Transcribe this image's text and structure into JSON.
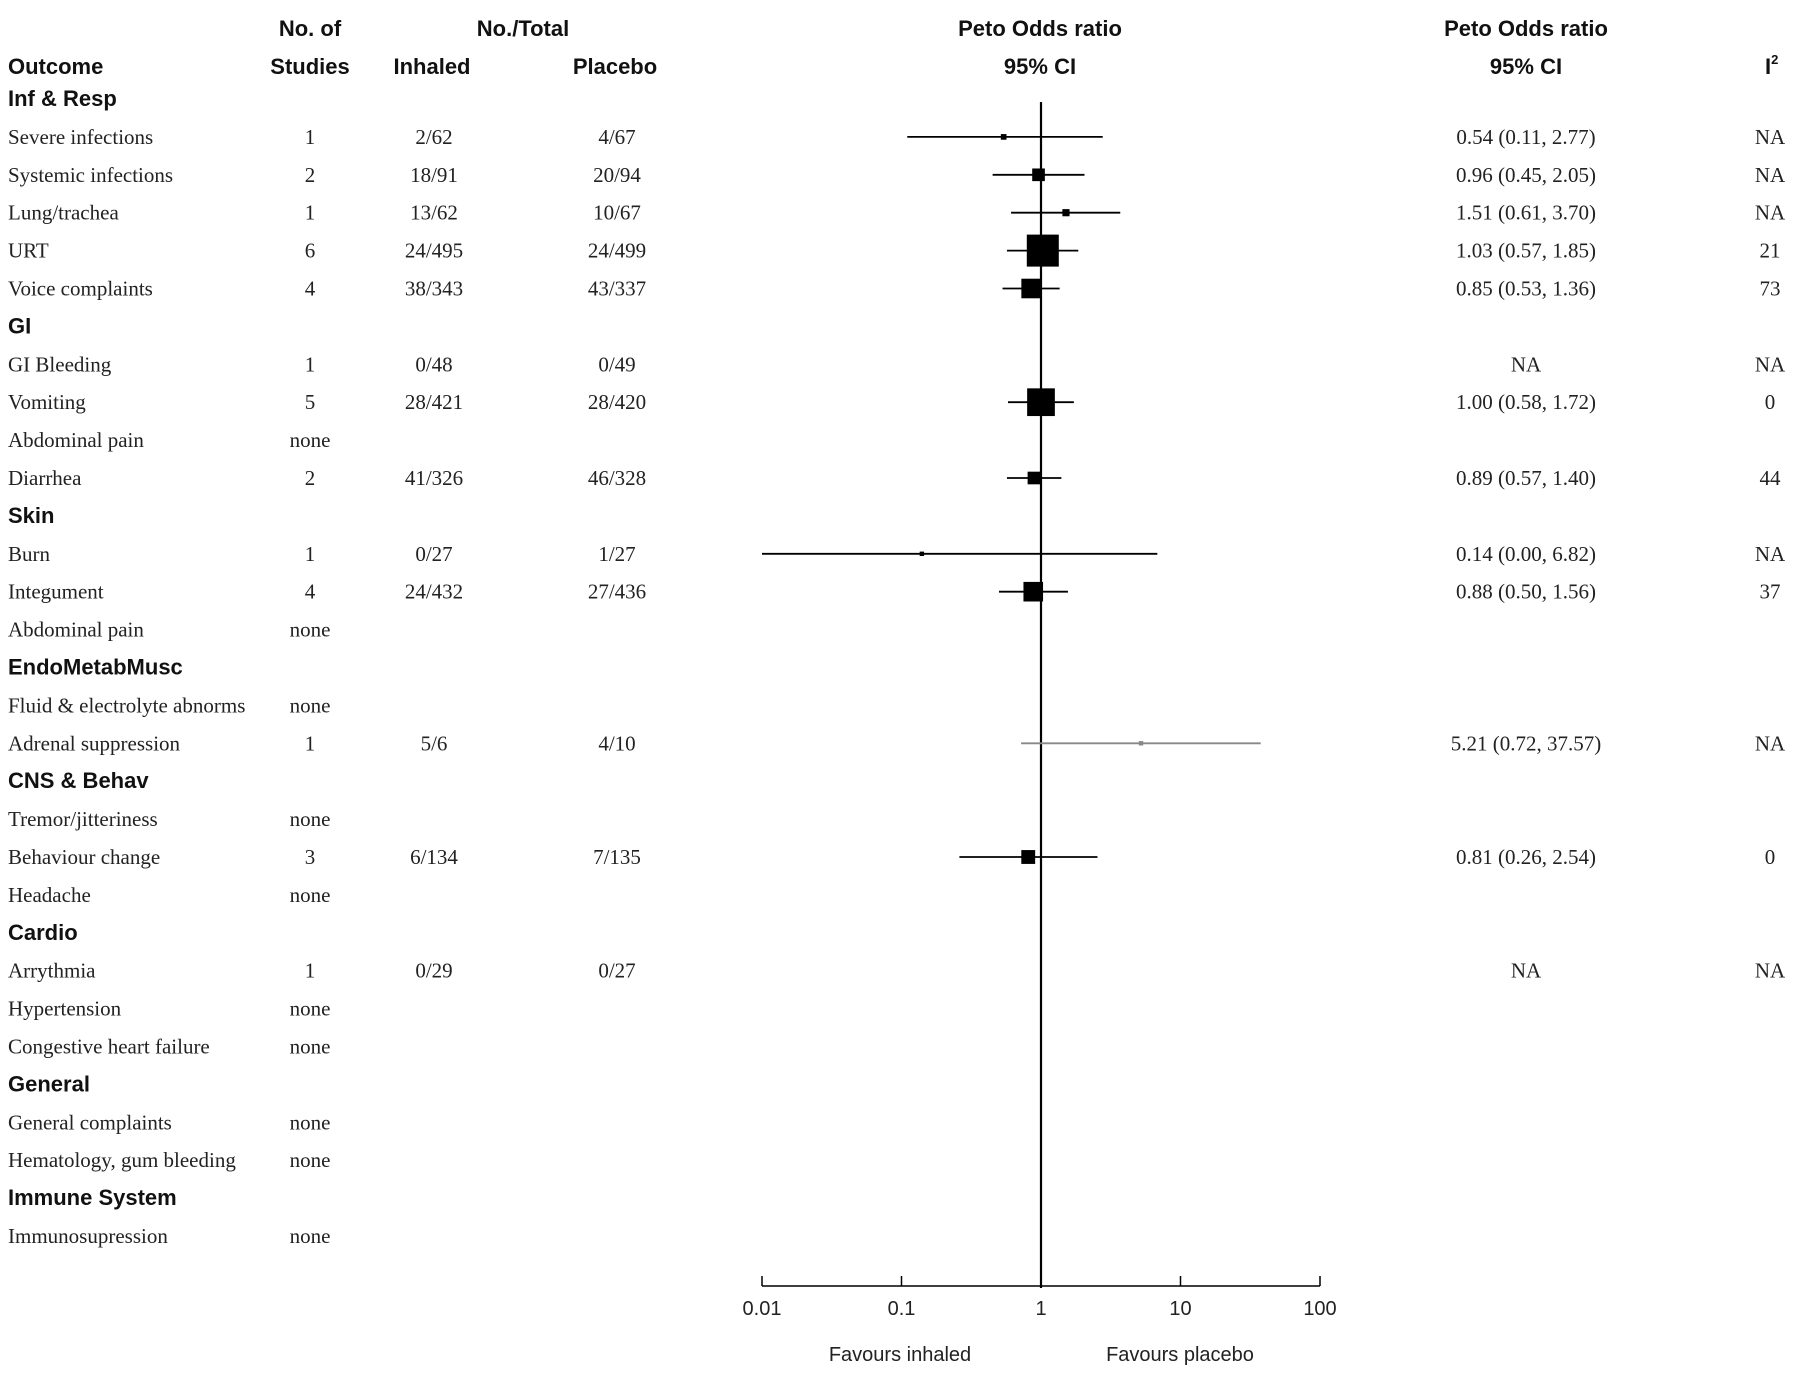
{
  "chart_data": {
    "type": "forest",
    "x_scale": "log",
    "xlim": [
      0.01,
      100
    ],
    "ref_line": 1,
    "headers": {
      "no_of": "No. of",
      "studies": "Studies",
      "no_total": "No./Total",
      "outcome": "Outcome",
      "inhaled": "Inhaled",
      "placebo": "Placebo",
      "peto_center": "Peto Odds ratio",
      "ci_center": "95% CI",
      "peto_right": "Peto Odds ratio",
      "ci_right": "95% CI",
      "i2": "I",
      "i2_sup": "2"
    },
    "x_ticks": [
      "0.01",
      "0.1",
      "1",
      "10",
      "100"
    ],
    "x_tick_values": [
      0.01,
      0.1,
      1,
      10,
      100
    ],
    "favours_left": "Favours inhaled",
    "favours_right": "Favours placebo",
    "rows": [
      {
        "section": "Inf & Resp"
      },
      {
        "outcome": "Severe infections",
        "studies": "1",
        "inhaled": "2/62",
        "placebo": "4/67",
        "or": 0.54,
        "lo": 0.11,
        "hi": 2.77,
        "ci_text": "0.54 (0.11, 2.77)",
        "i2": "NA",
        "weight": 0.5,
        "color": "#000000"
      },
      {
        "outcome": "Systemic infections",
        "studies": "2",
        "inhaled": "18/91",
        "placebo": "20/94",
        "or": 0.96,
        "lo": 0.45,
        "hi": 2.05,
        "ci_text": "0.96 (0.45, 2.05)",
        "i2": "NA",
        "weight": 2.5,
        "color": "#000000"
      },
      {
        "outcome": "Lung/trachea",
        "studies": "1",
        "inhaled": "13/62",
        "placebo": "10/67",
        "or": 1.51,
        "lo": 0.61,
        "hi": 3.7,
        "ci_text": "1.51 (0.61, 3.70)",
        "i2": "NA",
        "weight": 0.8,
        "color": "#000000"
      },
      {
        "outcome": "URT",
        "studies": "6",
        "inhaled": "24/495",
        "placebo": "24/499",
        "or": 1.03,
        "lo": 0.57,
        "hi": 1.85,
        "ci_text": "1.03 (0.57, 1.85)",
        "i2": "21",
        "weight": 16,
        "color": "#000000"
      },
      {
        "outcome": "Voice complaints",
        "studies": "4",
        "inhaled": "38/343",
        "placebo": "43/337",
        "or": 0.85,
        "lo": 0.53,
        "hi": 1.36,
        "ci_text": "0.85 (0.53, 1.36)",
        "i2": "73",
        "weight": 6,
        "color": "#000000"
      },
      {
        "section": "GI"
      },
      {
        "outcome": "GI Bleeding",
        "studies": "1",
        "inhaled": "0/48",
        "placebo": "0/49",
        "or": null,
        "lo": null,
        "hi": null,
        "ci_text": "NA",
        "i2": "NA"
      },
      {
        "outcome": "Vomiting",
        "studies": "5",
        "inhaled": "28/421",
        "placebo": "28/420",
        "or": 1.0,
        "lo": 0.58,
        "hi": 1.72,
        "ci_text": "1.00 (0.58, 1.72)",
        "i2": "0",
        "weight": 12,
        "color": "#000000"
      },
      {
        "outcome": "Abdominal pain",
        "studies": "none"
      },
      {
        "outcome": "Diarrhea",
        "studies": "2",
        "inhaled": "41/326",
        "placebo": "46/328",
        "or": 0.89,
        "lo": 0.57,
        "hi": 1.4,
        "ci_text": "0.89 (0.57, 1.40)",
        "i2": "44",
        "weight": 2.5,
        "color": "#000000"
      },
      {
        "section": "Skin"
      },
      {
        "outcome": "Burn",
        "studies": "1",
        "inhaled": "0/27",
        "placebo": "1/27",
        "or": 0.14,
        "lo": 0.0,
        "hi": 6.82,
        "ci_text": "0.14 (0.00, 6.82)",
        "i2": "NA",
        "weight": 0.3,
        "color": "#000000"
      },
      {
        "outcome": "Integument",
        "studies": "4",
        "inhaled": "24/432",
        "placebo": "27/436",
        "or": 0.88,
        "lo": 0.5,
        "hi": 1.56,
        "ci_text": "0.88 (0.50, 1.56)",
        "i2": "37",
        "weight": 6,
        "color": "#000000"
      },
      {
        "outcome": "Abdominal pain",
        "studies": "none"
      },
      {
        "section": "EndoMetabMusc"
      },
      {
        "outcome": "Fluid & electrolyte abnorms",
        "studies": "none"
      },
      {
        "outcome": "Adrenal suppression",
        "studies": "1",
        "inhaled": "5/6",
        "placebo": "4/10",
        "or": 5.21,
        "lo": 0.72,
        "hi": 37.57,
        "ci_text": "5.21 (0.72, 37.57)",
        "i2": "NA",
        "weight": 0.3,
        "color": "#888888"
      },
      {
        "section": "CNS & Behav"
      },
      {
        "outcome": "Tremor/jitteriness",
        "studies": "none"
      },
      {
        "outcome": "Behaviour change",
        "studies": "3",
        "inhaled": "6/134",
        "placebo": "7/135",
        "or": 0.81,
        "lo": 0.26,
        "hi": 2.54,
        "ci_text": "0.81 (0.26, 2.54)",
        "i2": "0",
        "weight": 3,
        "color": "#000000"
      },
      {
        "outcome": "Headache",
        "studies": "none"
      },
      {
        "section": "Cardio"
      },
      {
        "outcome": "Arrythmia",
        "studies": "1",
        "inhaled": "0/29",
        "placebo": "0/27",
        "or": null,
        "lo": null,
        "hi": null,
        "ci_text": "NA",
        "i2": "NA"
      },
      {
        "outcome": "Hypertension",
        "studies": "none"
      },
      {
        "outcome": "Congestive heart failure",
        "studies": "none"
      },
      {
        "section": "General"
      },
      {
        "outcome": "General complaints",
        "studies": "none"
      },
      {
        "outcome": "Hematology, gum bleeding",
        "studies": "none"
      },
      {
        "section": "Immune System"
      },
      {
        "outcome": "Immunosupression",
        "studies": "none"
      }
    ]
  }
}
